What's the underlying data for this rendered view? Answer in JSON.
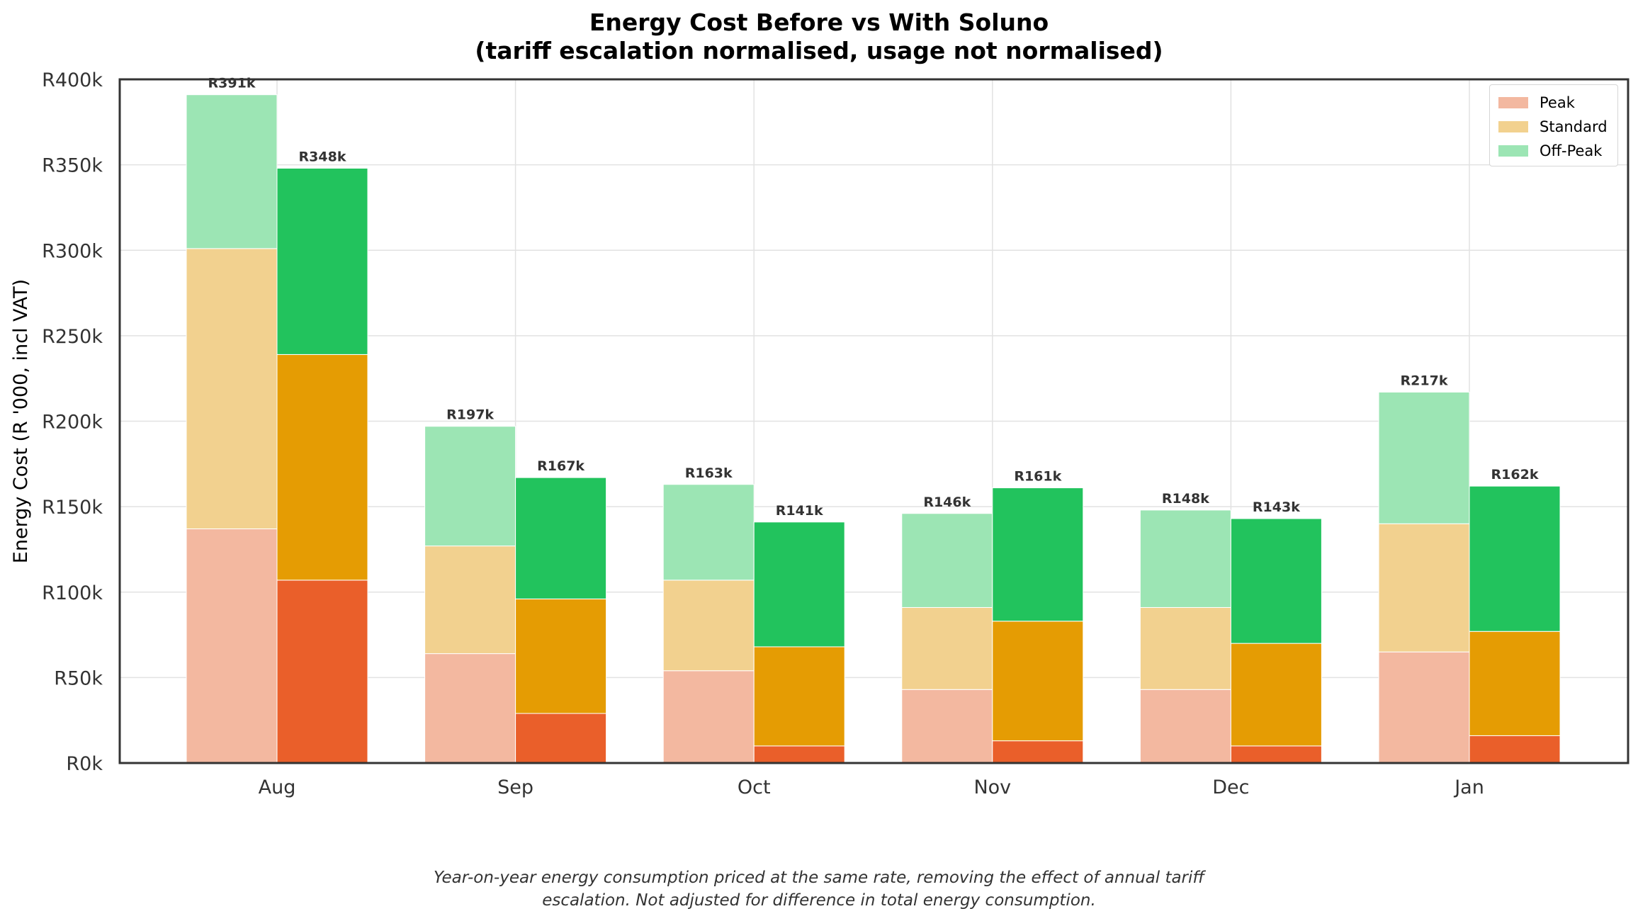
{
  "title": {
    "line1": "Energy Cost Before vs With Soluno",
    "line2": "(tariff escalation normalised, usage not normalised)"
  },
  "caption": {
    "line1": "Year-on-year energy consumption priced at the same rate, removing the effect of annual tariff",
    "line2": "escalation.  Not adjusted for difference in total energy consumption."
  },
  "colors": {
    "peak_before": "#f3b8a0",
    "peak_with": "#ea5f2a",
    "standard_before": "#f2d18f",
    "standard_with": "#e59c03",
    "offpeak_before": "#9ce5b4",
    "offpeak_with": "#22c35d",
    "grid": "#e2e2e2",
    "axes": "#333333"
  },
  "legend": {
    "items": [
      {
        "label": "Peak",
        "color": "#f3b8a0"
      },
      {
        "label": "Standard",
        "color": "#f2d18f"
      },
      {
        "label": "Off-Peak",
        "color": "#9ce5b4"
      }
    ]
  },
  "chart_data": {
    "type": "bar",
    "stacked": true,
    "grouped": true,
    "title": "Energy Cost Before vs With Soluno\n(tariff escalation normalised, usage not normalised)",
    "xlabel": "",
    "ylabel": "Energy Cost (R '000, incl VAT)",
    "categories": [
      "Aug",
      "Sep",
      "Oct",
      "Nov",
      "Dec",
      "Jan"
    ],
    "ylim": [
      0,
      400
    ],
    "yticks": [
      0,
      50,
      100,
      150,
      200,
      250,
      300,
      350,
      400
    ],
    "ytick_labels": [
      "R0k",
      "R50k",
      "R100k",
      "R150k",
      "R200k",
      "R250k",
      "R300k",
      "R350k",
      "R400k"
    ],
    "grid": true,
    "legend_position": "top-right",
    "stack_order": [
      "Peak",
      "Standard",
      "Off-Peak"
    ],
    "groups": [
      {
        "group": "before",
        "peak": [
          137,
          64,
          54,
          43,
          43,
          65
        ],
        "standard": [
          164,
          63,
          53,
          48,
          48,
          75
        ],
        "offpeak": [
          90,
          70,
          56,
          55,
          57,
          77
        ],
        "totals": [
          391,
          197,
          163,
          146,
          148,
          217
        ],
        "total_labels": [
          "R391k",
          "R197k",
          "R163k",
          "R146k",
          "R148k",
          "R217k"
        ]
      },
      {
        "group": "with",
        "peak": [
          107,
          29,
          10,
          13,
          10,
          16
        ],
        "standard": [
          132,
          67,
          58,
          70,
          60,
          61
        ],
        "offpeak": [
          109,
          71,
          73,
          78,
          73,
          85
        ],
        "totals": [
          348,
          167,
          141,
          161,
          143,
          162
        ],
        "total_labels": [
          "R348k",
          "R167k",
          "R141k",
          "R161k",
          "R143k",
          "R162k"
        ]
      }
    ]
  }
}
